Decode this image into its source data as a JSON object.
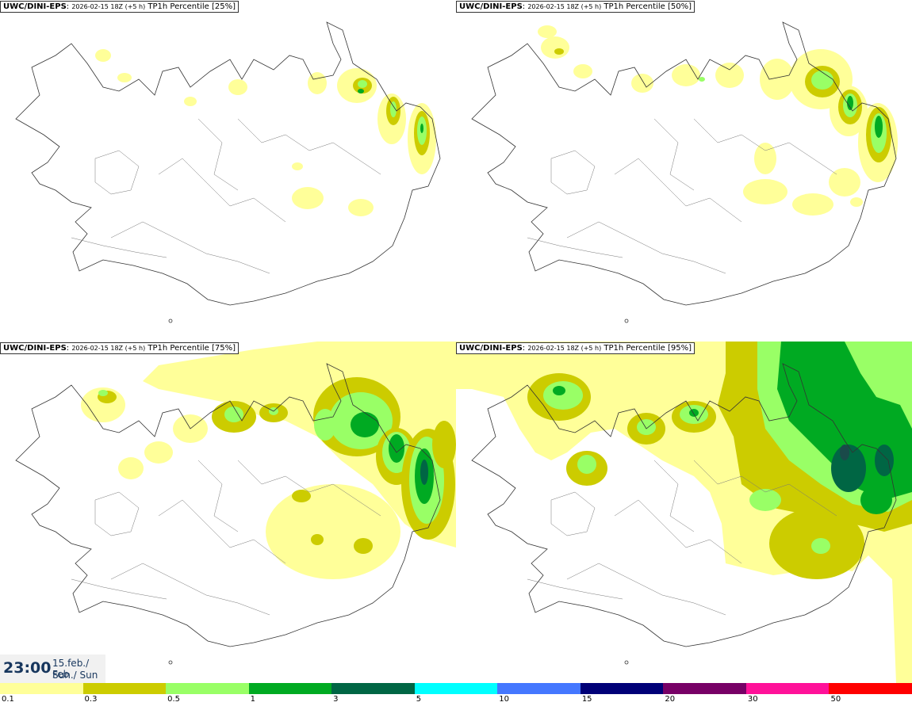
{
  "panels": [
    {
      "model": "UWC/DINI-EPS",
      "run": "2026-02-15 18Z (+5 h)",
      "field": "TP1h Percentile [25%]"
    },
    {
      "model": "UWC/DINI-EPS",
      "run": "2026-02-15 18Z (+5 h)",
      "field": "TP1h Percentile [50%]"
    },
    {
      "model": "UWC/DINI-EPS",
      "run": "2026-02-15 18Z (+5 h)",
      "field": "TP1h Percentile [75%]"
    },
    {
      "model": "UWC/DINI-EPS",
      "run": "2026-02-15 18Z (+5 h)",
      "field": "TP1h Percentile [95%]"
    }
  ],
  "valid_time": {
    "time": "23:00",
    "date": "15.feb./ Feb",
    "day": "Sun./ Sun"
  },
  "legend": {
    "ticks": [
      "0.1",
      "0.3",
      "0.5",
      "1",
      "3",
      "5",
      "10",
      "15",
      "20",
      "30",
      "50"
    ],
    "colors": [
      "#ffff99",
      "#cccc00",
      "#99ff66",
      "#00aa22",
      "#006644",
      "#00ffff",
      "#4477ff",
      "#000077",
      "#770066",
      "#ff1199",
      "#ff0000"
    ]
  }
}
